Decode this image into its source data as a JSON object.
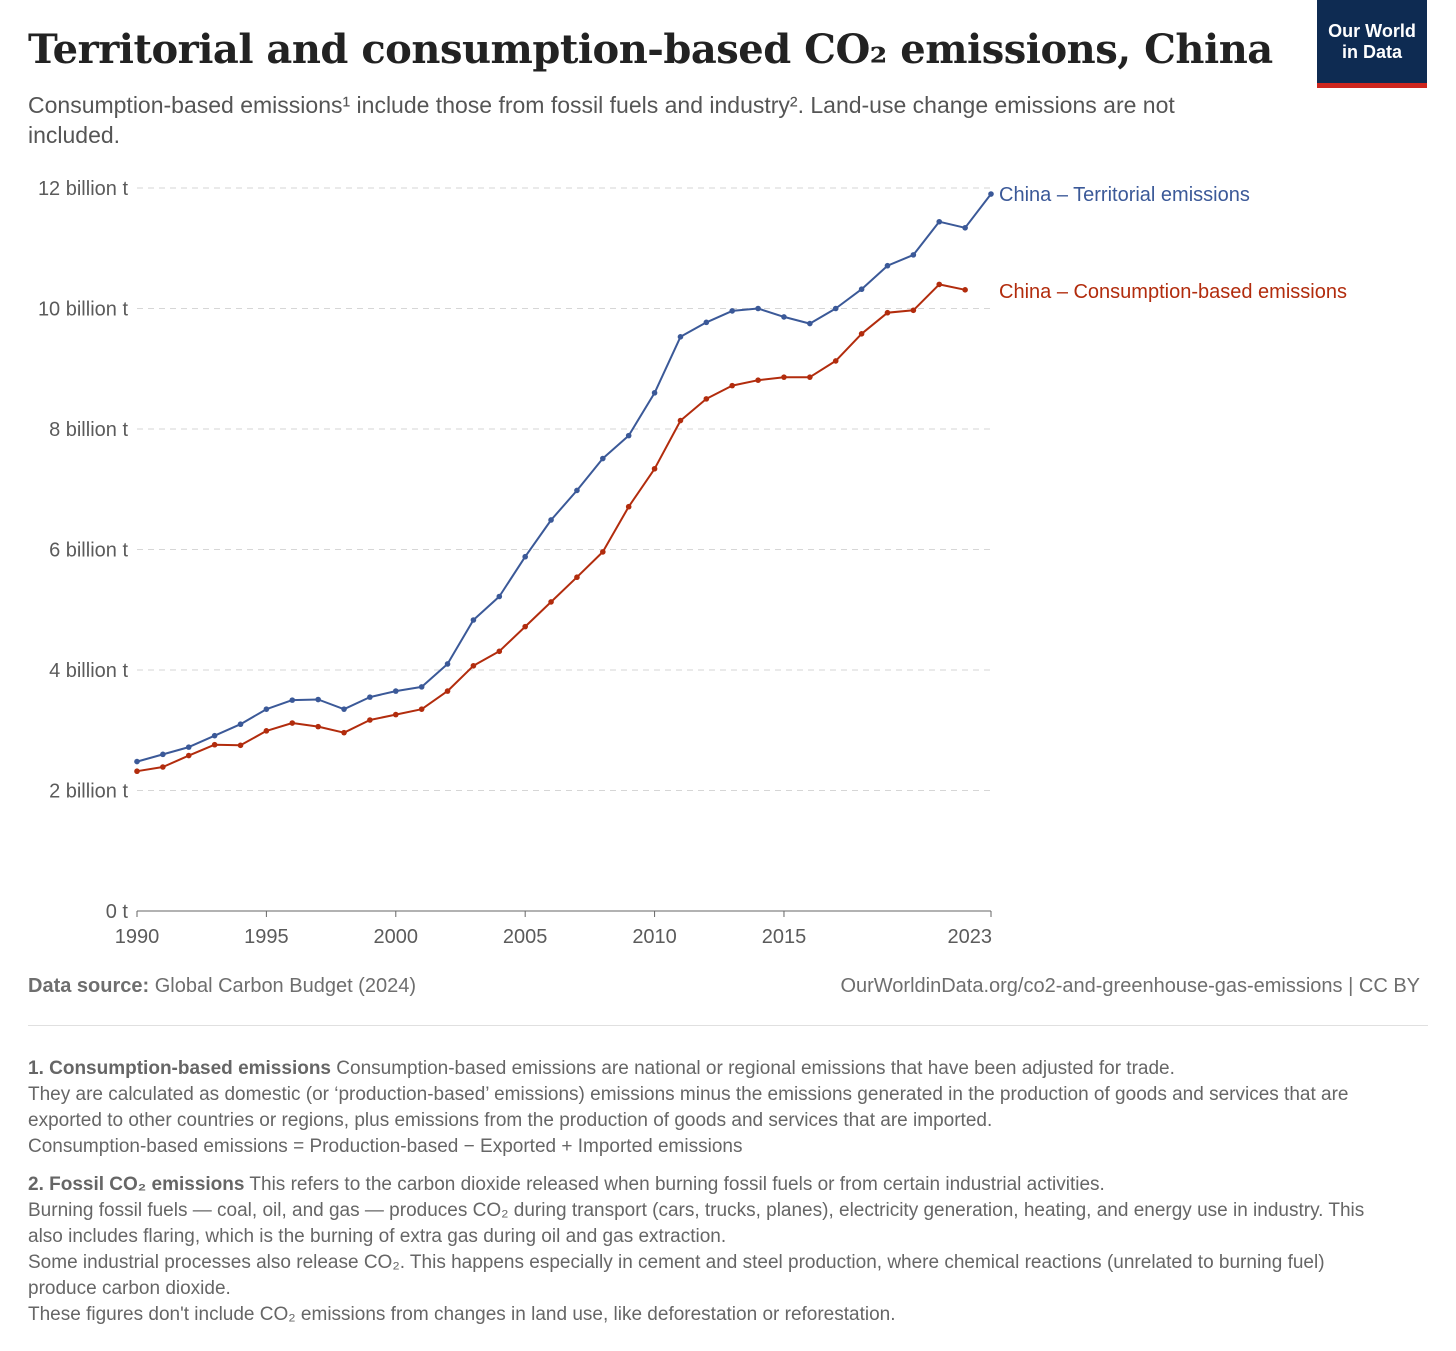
{
  "header": {
    "title": "Territorial and consumption-based CO₂ emissions, China",
    "subtitle": "Consumption-based emissions¹ include those from fossil fuels and industry². Land-use change emissions are not included.",
    "logo_line1": "Our World",
    "logo_line2": "in Data"
  },
  "chart_data": {
    "type": "line",
    "title": "Territorial and consumption-based CO₂ emissions, China",
    "x_ticks": [
      1990,
      1995,
      2000,
      2005,
      2010,
      2015,
      2023
    ],
    "x_tick_labels": [
      "1990",
      "1995",
      "2000",
      "2005",
      "2010",
      "2015",
      "2023"
    ],
    "y_ticks": [
      0,
      2,
      4,
      6,
      8,
      10,
      12
    ],
    "y_tick_labels": [
      "0 t",
      "2 billion t",
      "4 billion t",
      "6 billion t",
      "8 billion t",
      "10 billion t",
      "12 billion t"
    ],
    "xlim": [
      1990,
      2023
    ],
    "ylim": [
      0,
      12
    ],
    "grid": "horizontal dashed",
    "legend": "line-end labels",
    "series": [
      {
        "name": "China – Territorial emissions",
        "color": "#3b5998",
        "x": [
          1990,
          1991,
          1992,
          1993,
          1994,
          1995,
          1996,
          1997,
          1998,
          1999,
          2000,
          2001,
          2002,
          2003,
          2004,
          2005,
          2006,
          2007,
          2008,
          2009,
          2010,
          2011,
          2012,
          2013,
          2014,
          2015,
          2016,
          2017,
          2018,
          2019,
          2020,
          2021,
          2022,
          2023
        ],
        "values": [
          2.48,
          2.6,
          2.72,
          2.91,
          3.1,
          3.35,
          3.5,
          3.51,
          3.35,
          3.55,
          3.65,
          3.72,
          4.1,
          4.83,
          5.22,
          5.88,
          6.49,
          6.98,
          7.51,
          7.89,
          8.6,
          9.53,
          9.77,
          9.96,
          10.0,
          9.86,
          9.75,
          10.0,
          10.32,
          10.71,
          10.89,
          11.44,
          11.34,
          11.9
        ]
      },
      {
        "name": "China – Consumption-based emissions",
        "color": "#b22c0d",
        "x": [
          1990,
          1991,
          1992,
          1993,
          1994,
          1995,
          1996,
          1997,
          1998,
          1999,
          2000,
          2001,
          2002,
          2003,
          2004,
          2005,
          2006,
          2007,
          2008,
          2009,
          2010,
          2011,
          2012,
          2013,
          2014,
          2015,
          2016,
          2017,
          2018,
          2019,
          2020,
          2021,
          2022
        ],
        "values": [
          2.32,
          2.39,
          2.58,
          2.76,
          2.75,
          2.99,
          3.12,
          3.06,
          2.96,
          3.17,
          3.26,
          3.35,
          3.65,
          4.07,
          4.31,
          4.72,
          5.13,
          5.54,
          5.96,
          6.71,
          7.34,
          8.14,
          8.5,
          8.72,
          8.81,
          8.86,
          8.86,
          9.13,
          9.58,
          9.93,
          9.97,
          10.4,
          10.31
        ]
      }
    ]
  },
  "footer": {
    "source_label": "Data source:",
    "source_value": "Global Carbon Budget (2024)",
    "url": "OurWorldinData.org/co2-and-greenhouse-gas-emissions",
    "license": "| CC BY"
  },
  "notes": [
    {
      "heading": "1. Consumption-based emissions",
      "lines": [
        "Consumption-based emissions are national or regional emissions that have been adjusted for trade.",
        "They are calculated as domestic (or ‘production-based’ emissions) emissions minus the emissions generated in the production of goods and services that are exported to other countries or regions, plus emissions from the production of goods and services that are imported.",
        "Consumption-based emissions = Production-based − Exported + Imported emissions"
      ]
    },
    {
      "heading": "2. Fossil CO₂ emissions",
      "lines": [
        "This refers to the carbon dioxide released when burning fossil fuels or from certain industrial activities.",
        "Burning fossil fuels — coal, oil, and gas — produces CO₂ during transport (cars, trucks, planes), electricity generation, heating, and energy use in industry. This also includes flaring, which is the burning of extra gas during oil and gas extraction.",
        "Some industrial processes also release CO₂. This happens especially in cement and steel production, where chemical reactions (unrelated to burning fuel) produce carbon dioxide.",
        "These figures don't include CO₂ emissions from changes in land use, like deforestation or reforestation."
      ]
    }
  ]
}
